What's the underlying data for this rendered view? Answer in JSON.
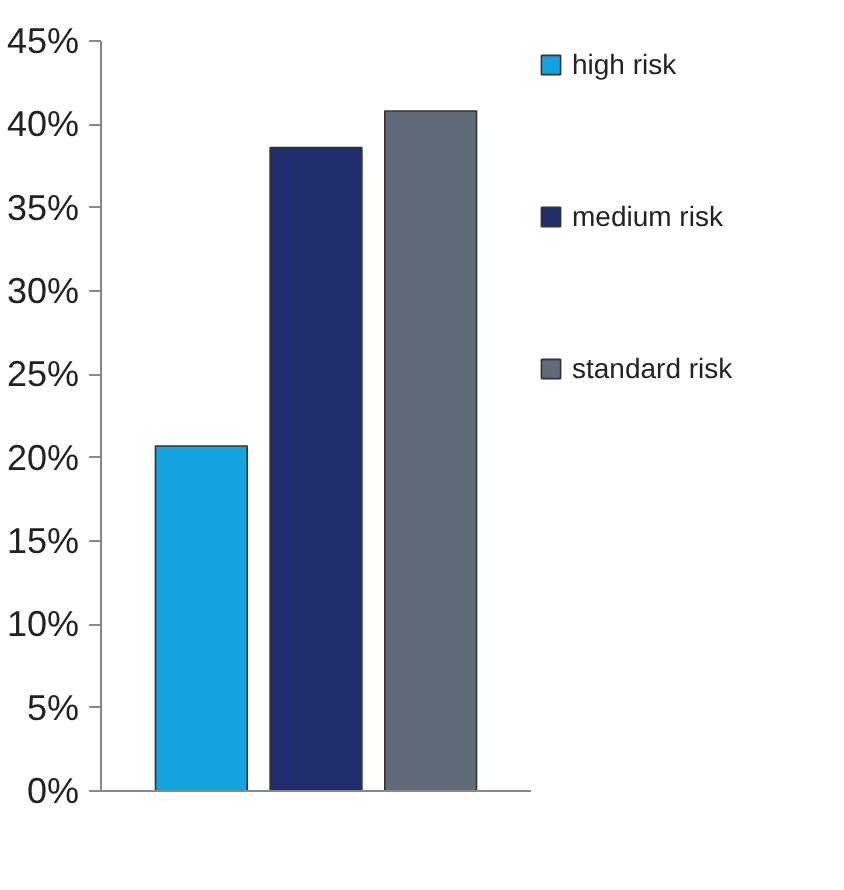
{
  "chart_data": {
    "type": "bar",
    "categories": [
      null
    ],
    "series": [
      {
        "name": "high risk",
        "color": "#12a3e0",
        "values": [
          20.7
        ]
      },
      {
        "name": "medium risk",
        "color": "#1f2d6e",
        "values": [
          38.6
        ]
      },
      {
        "name": "standard risk",
        "color": "#5f6b78",
        "values": [
          40.8
        ]
      }
    ],
    "ylim": [
      0,
      45
    ],
    "yticks": [
      {
        "value": 0,
        "label": "0%"
      },
      {
        "value": 5,
        "label": "5%"
      },
      {
        "value": 10,
        "label": "10%"
      },
      {
        "value": 15,
        "label": "15%"
      },
      {
        "value": 20,
        "label": "20%"
      },
      {
        "value": 25,
        "label": "25%"
      },
      {
        "value": 30,
        "label": "30%"
      },
      {
        "value": 35,
        "label": "35%"
      },
      {
        "value": 40,
        "label": "40%"
      },
      {
        "value": 45,
        "label": "45%"
      }
    ],
    "tick_labels": "y",
    "grid": false,
    "legend": "right"
  }
}
